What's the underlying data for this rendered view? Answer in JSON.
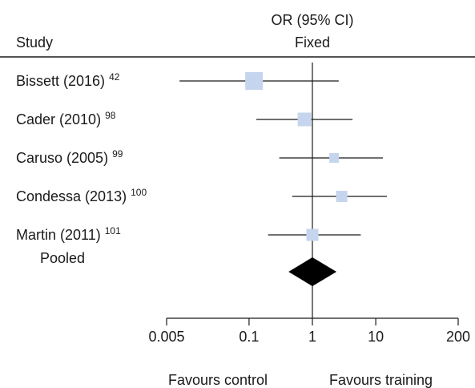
{
  "chart_data": {
    "type": "forest",
    "header": {
      "study_label": "Study",
      "effect_label_line1": "OR (95% CI)",
      "effect_label_line2": "Fixed"
    },
    "x_scale": "log",
    "xlim": [
      0.005,
      200
    ],
    "x_ticks": [
      0.005,
      0.1,
      1,
      10,
      200
    ],
    "x_tick_labels": [
      "0.005",
      "0.1",
      "1",
      "10",
      "200"
    ],
    "reference_line": 1,
    "studies": [
      {
        "name": "Bissett (2016)",
        "ref": "42",
        "or": 0.12,
        "ci_low": 0.008,
        "ci_high": 2.6
      },
      {
        "name": "Cader (2010)",
        "ref": "98",
        "or": 0.75,
        "ci_low": 0.13,
        "ci_high": 4.3
      },
      {
        "name": "Caruso (2005)",
        "ref": "99",
        "or": 2.2,
        "ci_low": 0.3,
        "ci_high": 13
      },
      {
        "name": "Condessa (2013)",
        "ref": "100",
        "or": 2.9,
        "ci_low": 0.48,
        "ci_high": 15
      },
      {
        "name": "Martin (2011)",
        "ref": "101",
        "or": 1.0,
        "ci_low": 0.2,
        "ci_high": 5.8
      }
    ],
    "pooled": {
      "name": "Pooled",
      "or": 1.0,
      "ci_low": 0.42,
      "ci_high": 2.4
    },
    "favours_left": "Favours control",
    "favours_right": "Favours training",
    "colors": {
      "box": "#c5d5ee",
      "diamond": "#000000",
      "line": "#1a1a1a"
    }
  }
}
